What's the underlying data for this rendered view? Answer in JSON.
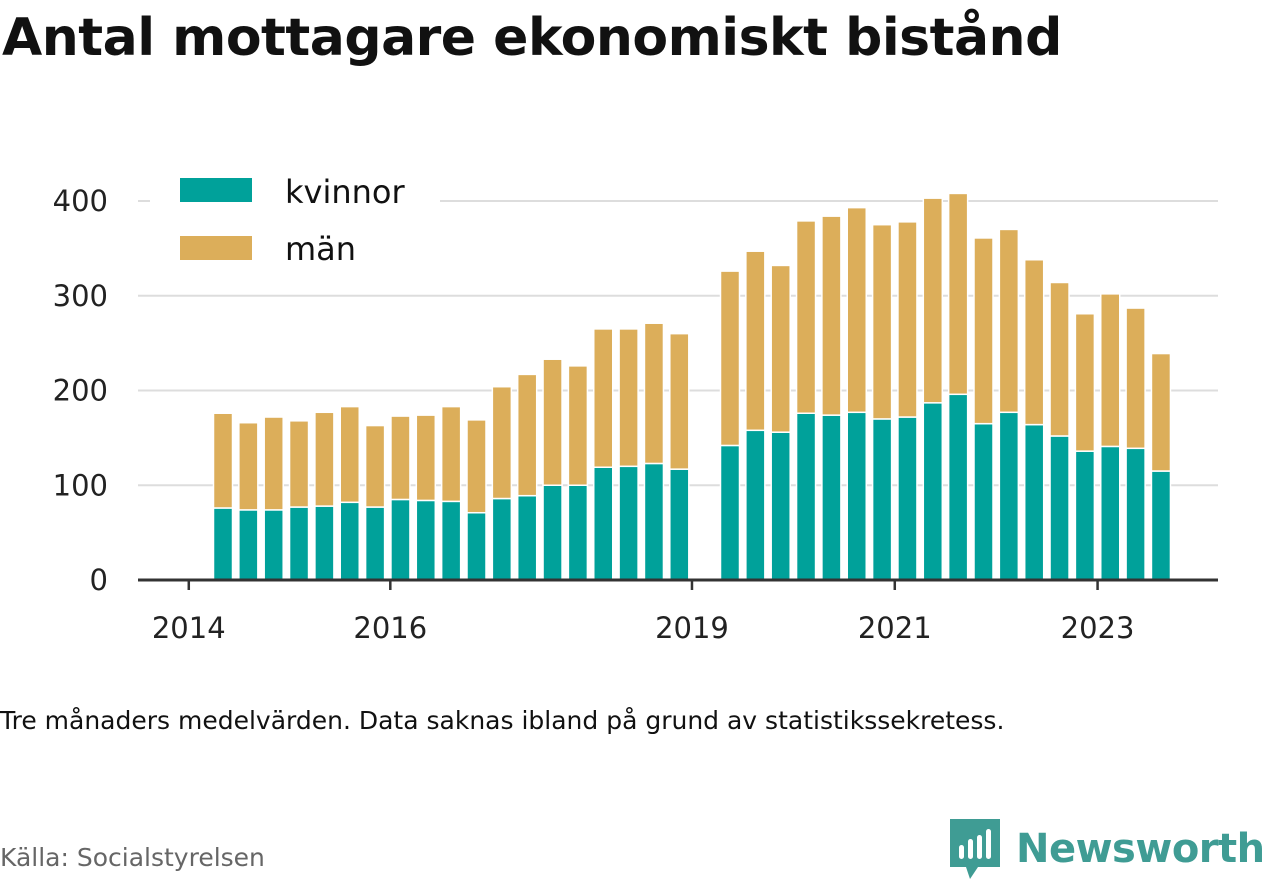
{
  "title": "Antal mottagare ekonomiskt bistånd",
  "note": "Tre månaders medelvärden. Data saknas ibland på grund av statistikssekretess.",
  "source": "Källa: Socialstyrelsen",
  "brand": {
    "name": "Newsworthy",
    "icon": "newsworthy-logo-icon",
    "color": "#3f9c94"
  },
  "chart_data": {
    "type": "bar",
    "stacked": true,
    "grid": true,
    "legend_position": "top-left",
    "x_tick_labels": [
      "2014",
      "2016",
      "2019",
      "2021",
      "2023"
    ],
    "y_ticks": [
      0,
      100,
      200,
      300,
      400
    ],
    "ylim": [
      0,
      420
    ],
    "series": [
      {
        "name": "kvinnor",
        "color": "#00a19a",
        "values": [
          76,
          74,
          74,
          77,
          78,
          82,
          77,
          85,
          84,
          83,
          71,
          86,
          89,
          100,
          100,
          119,
          120,
          123,
          117,
          null,
          142,
          158,
          156,
          176,
          174,
          177,
          170,
          172,
          187,
          196,
          165,
          177,
          164,
          152,
          136,
          141,
          139,
          115
        ]
      },
      {
        "name": "män",
        "color": "#dcae5a",
        "values": [
          100,
          92,
          98,
          91,
          99,
          101,
          86,
          88,
          90,
          100,
          98,
          118,
          128,
          133,
          126,
          146,
          145,
          148,
          143,
          null,
          184,
          189,
          176,
          203,
          210,
          216,
          205,
          206,
          216,
          212,
          196,
          193,
          174,
          162,
          145,
          161,
          148,
          124
        ]
      }
    ]
  }
}
